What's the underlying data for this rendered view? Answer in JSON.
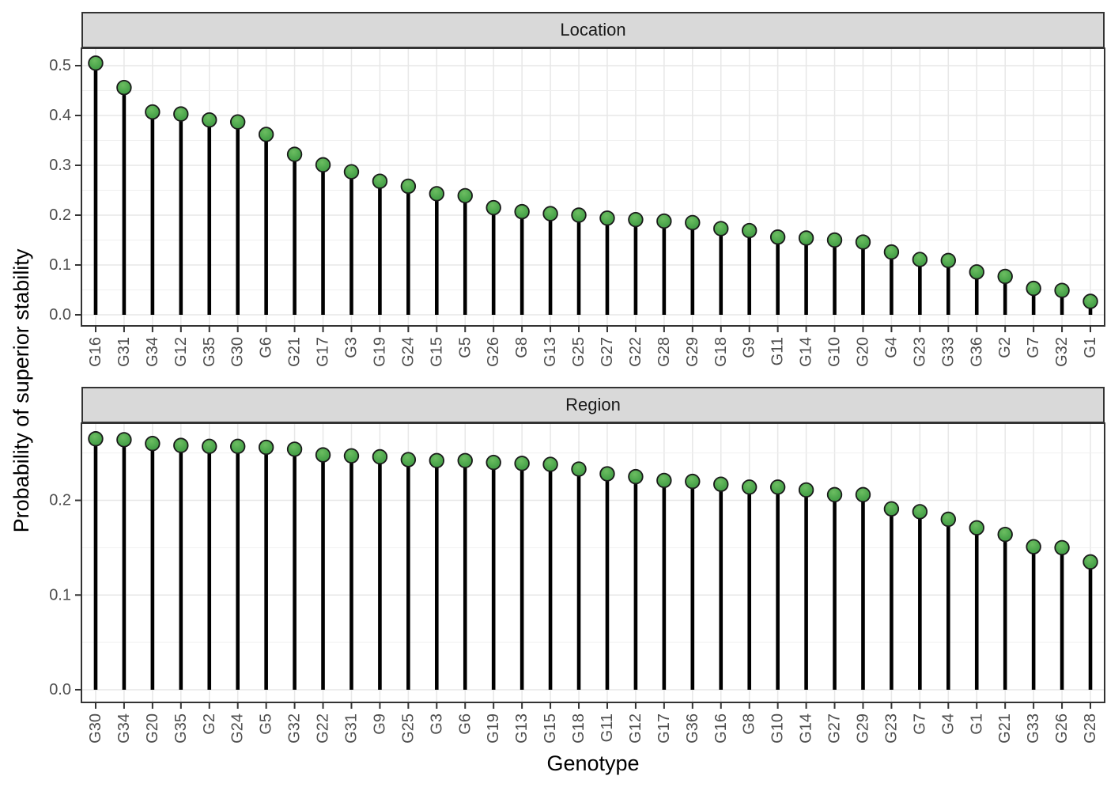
{
  "chart_data": {
    "type": "lollipop",
    "title": "",
    "x_axis_title": "Genotype",
    "y_axis_title": "Probability of superior stability",
    "legend": "none",
    "grid": "on",
    "colors": {
      "point_fill": "#4CA64C",
      "point_fill_light": "#6cbd61",
      "point_fill_dark": "#3c9440",
      "point_stroke": "#1a1a1a",
      "stem": "#000000",
      "panel_background": "#ffffff",
      "panel_border": "#333333",
      "grid_major": "#e7e7e7",
      "grid_minor": "#efefef",
      "strip_fill": "#d9d9d9",
      "tick_label": "#4d4d4d",
      "tick_mark": "#333333"
    },
    "facets": [
      {
        "label": "Location",
        "categories": [
          "G16",
          "G31",
          "G34",
          "G12",
          "G35",
          "G30",
          "G6",
          "G21",
          "G17",
          "G3",
          "G19",
          "G24",
          "G15",
          "G5",
          "G26",
          "G8",
          "G13",
          "G25",
          "G27",
          "G22",
          "G28",
          "G29",
          "G18",
          "G9",
          "G11",
          "G14",
          "G10",
          "G20",
          "G4",
          "G23",
          "G33",
          "G36",
          "G2",
          "G7",
          "G32",
          "G1"
        ],
        "values": [
          0.505,
          0.456,
          0.407,
          0.403,
          0.391,
          0.387,
          0.362,
          0.322,
          0.301,
          0.287,
          0.268,
          0.258,
          0.243,
          0.239,
          0.215,
          0.207,
          0.203,
          0.2,
          0.194,
          0.191,
          0.188,
          0.185,
          0.173,
          0.169,
          0.156,
          0.154,
          0.15,
          0.146,
          0.126,
          0.111,
          0.109,
          0.086,
          0.077,
          0.053,
          0.049,
          0.027
        ],
        "ylim": [
          -0.0222,
          0.5349
        ],
        "ytick_values": [
          0.0,
          0.1,
          0.2,
          0.3,
          0.4,
          0.5
        ],
        "ytick_labels": [
          "0.0",
          "0.1",
          "0.2",
          "0.3",
          "0.4",
          "0.5"
        ],
        "yminor_values": [
          0.05,
          0.15,
          0.25,
          0.35,
          0.45
        ]
      },
      {
        "label": "Region",
        "categories": [
          "G30",
          "G34",
          "G20",
          "G35",
          "G2",
          "G24",
          "G5",
          "G32",
          "G22",
          "G31",
          "G9",
          "G25",
          "G3",
          "G6",
          "G19",
          "G13",
          "G15",
          "G18",
          "G11",
          "G12",
          "G17",
          "G36",
          "G16",
          "G8",
          "G10",
          "G14",
          "G27",
          "G29",
          "G23",
          "G7",
          "G4",
          "G1",
          "G21",
          "G33",
          "G26",
          "G28"
        ],
        "values": [
          0.265,
          0.264,
          0.26,
          0.258,
          0.257,
          0.257,
          0.256,
          0.254,
          0.248,
          0.247,
          0.246,
          0.243,
          0.242,
          0.242,
          0.24,
          0.239,
          0.238,
          0.233,
          0.228,
          0.225,
          0.221,
          0.22,
          0.217,
          0.214,
          0.214,
          0.211,
          0.206,
          0.206,
          0.191,
          0.188,
          0.18,
          0.171,
          0.164,
          0.151,
          0.15,
          0.135
        ],
        "ylim": [
          -0.0134,
          0.2815
        ],
        "ytick_values": [
          0.0,
          0.1,
          0.2
        ],
        "ytick_labels": [
          "0.0",
          "0.1",
          "0.2"
        ],
        "yminor_values": [
          0.05,
          0.15,
          0.25
        ]
      }
    ]
  }
}
